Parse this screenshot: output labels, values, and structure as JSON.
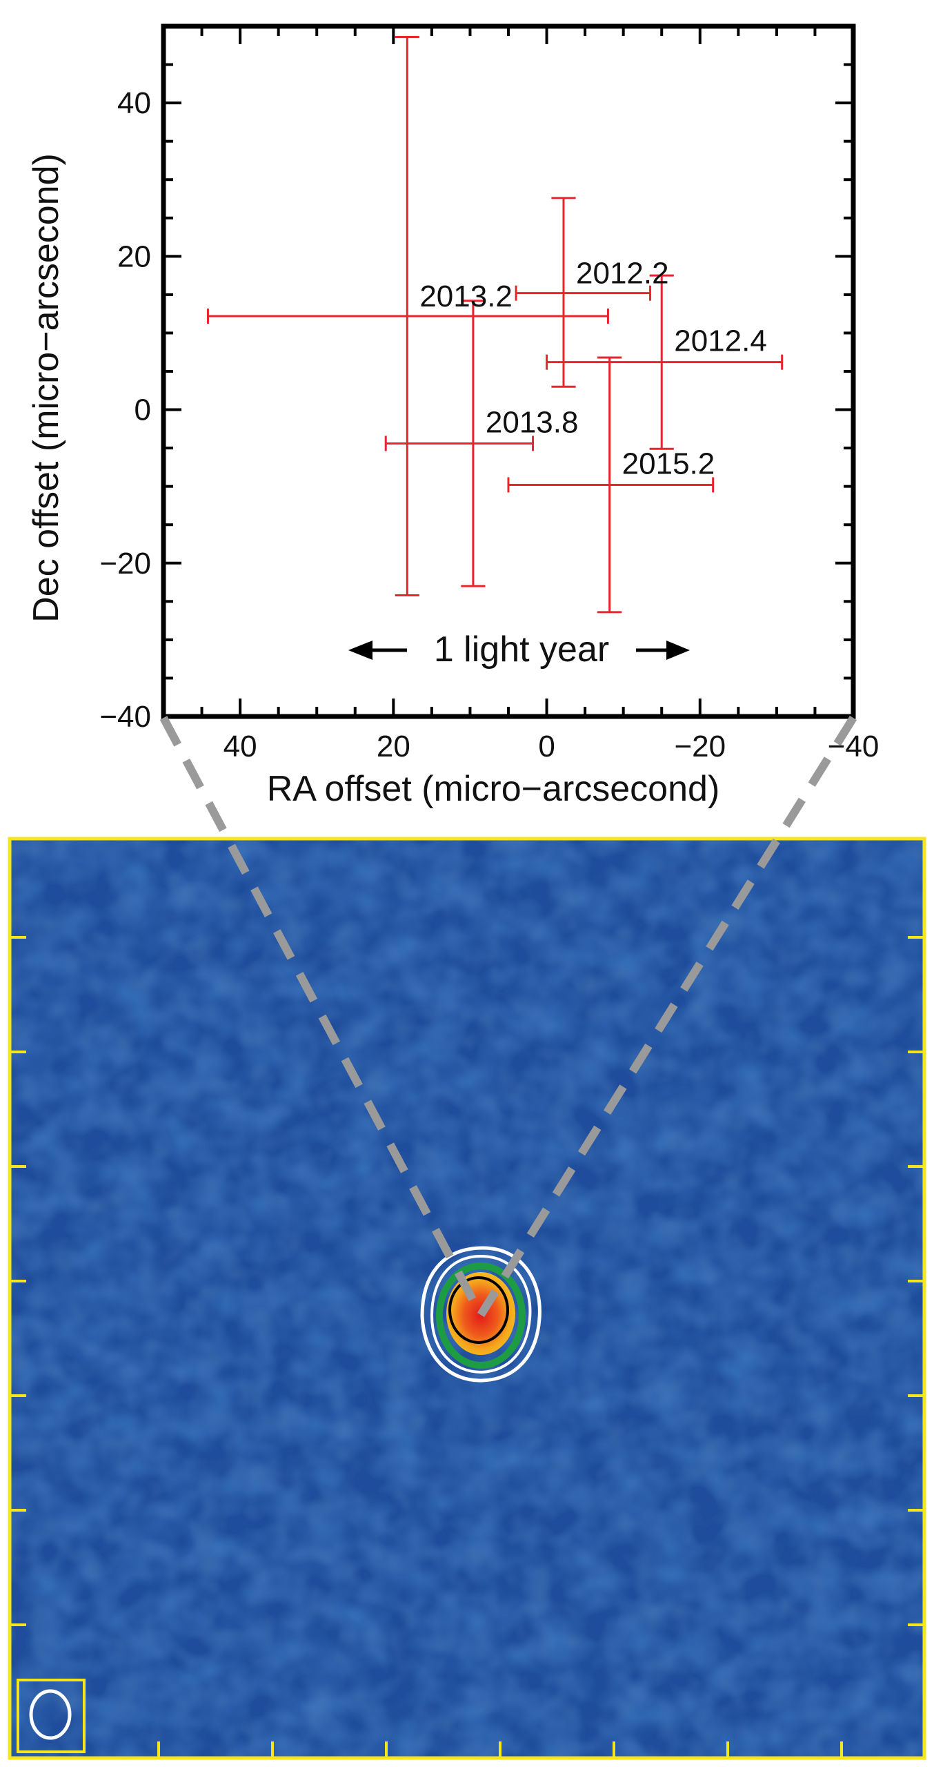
{
  "chart_data": [
    {
      "type": "scatter",
      "title": "",
      "xlabel": "RA offset (micro−arcsecond)",
      "ylabel": "Dec offset (micro−arcsecond)",
      "xlim": [
        50,
        -40
      ],
      "ylim": [
        -40,
        50
      ],
      "xticks": [
        40,
        20,
        0,
        -20,
        -40
      ],
      "yticks": [
        -40,
        -20,
        0,
        20,
        40
      ],
      "xtick_labels": [
        "40",
        "20",
        "0",
        "−20",
        "−40"
      ],
      "ytick_labels": [
        "−40",
        "−20",
        "0",
        "20",
        "40"
      ],
      "grid": false,
      "annotation": "1 light year",
      "error_bar_color": "#e8242c",
      "series": [
        {
          "name": "2012.2",
          "x": -2.2,
          "y": 15.2,
          "xerr": [
            6.2,
            11.3
          ],
          "yerr": [
            12.2,
            12.4
          ]
        },
        {
          "name": "2012.4",
          "x": -15.0,
          "y": 6.2,
          "xerr": [
            15.0,
            15.7
          ],
          "yerr": [
            11.3,
            11.3
          ]
        },
        {
          "name": "2013.2",
          "x": 18.2,
          "y": 12.2,
          "xerr": [
            26.0,
            26.2
          ],
          "yerr": [
            36.4,
            36.4
          ]
        },
        {
          "name": "2013.8",
          "x": 9.6,
          "y": -4.4,
          "xerr": [
            11.4,
            7.8
          ],
          "yerr": [
            18.6,
            18.6
          ]
        },
        {
          "name": "2015.2",
          "x": -8.2,
          "y": -9.8,
          "xerr": [
            13.2,
            13.5
          ],
          "yerr": [
            16.6,
            16.6
          ]
        }
      ]
    },
    {
      "type": "heatmap",
      "title": "",
      "description_colors": {
        "background": "#1f4c9c",
        "frame": "#f4e51c",
        "core_outer": "#f2a31b",
        "core_inner": "#e8241a",
        "contour_green": "#1e9c43",
        "contour_white": "#ffffff",
        "contour_black": "#000000",
        "connector": "#9a9a9a"
      },
      "contours": [
        "white",
        "white",
        "green",
        "black"
      ],
      "beam": "white ellipse in bottom-left box"
    }
  ]
}
